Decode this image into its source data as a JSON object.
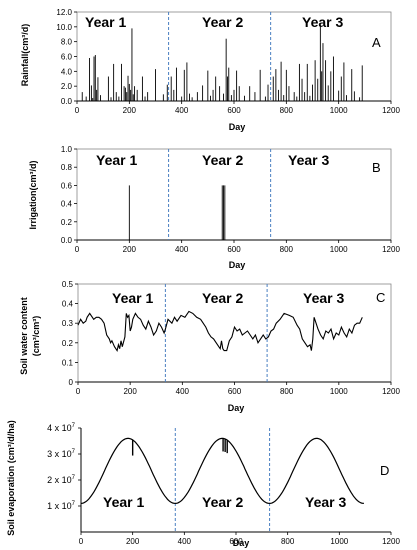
{
  "chart_data": [
    {
      "panel_label": "A",
      "type": "bar",
      "ylabel": "Rainfall(cm³/d)",
      "xlabel": "Day",
      "xlim": [
        0,
        1200
      ],
      "ylim": [
        0,
        12
      ],
      "x_ticks": [
        "0",
        "200",
        "400",
        "600",
        "800",
        "1000",
        "1200"
      ],
      "y_ticks": [
        "0.0",
        "2.0",
        "4.0",
        "6.0",
        "8.0",
        "10.0",
        "12.0"
      ],
      "year_labels": [
        "Year 1",
        "Year 2",
        "Year 3"
      ],
      "year_dividers": [
        350,
        740
      ],
      "series": [
        {
          "x": [
            20,
            35,
            48,
            55,
            60,
            65,
            70,
            75,
            80,
            90,
            120,
            130,
            140,
            150,
            160,
            170,
            180,
            185,
            190,
            195,
            200,
            205,
            210,
            215,
            220,
            230,
            250,
            260,
            270,
            300,
            330,
            345,
            360,
            370,
            380,
            400,
            410,
            420,
            430,
            440,
            460,
            480,
            500,
            510,
            520,
            530,
            545,
            560,
            570,
            575,
            580,
            590,
            600,
            610,
            620,
            640,
            660,
            680,
            700,
            720,
            730,
            750,
            760,
            770,
            780,
            790,
            800,
            810,
            830,
            840,
            850,
            860,
            870,
            880,
            890,
            900,
            910,
            920,
            930,
            935,
            940,
            950,
            960,
            970,
            980,
            1000,
            1010,
            1020,
            1030,
            1050,
            1060,
            1080,
            1090
          ],
          "values": [
            1.2,
            0.6,
            5.8,
            2.1,
            0.4,
            6.0,
            6.2,
            1.5,
            3.2,
            0.8,
            3.3,
            0.5,
            5.0,
            1.2,
            0.6,
            5.0,
            2.0,
            1.8,
            1.2,
            3.4,
            2.3,
            1.5,
            9.8,
            0.9,
            2.0,
            1.5,
            3.3,
            0.6,
            1.2,
            4.3,
            0.9,
            2.2,
            3.3,
            1.5,
            4.5,
            0.6,
            4.2,
            5.2,
            1.0,
            0.5,
            1.2,
            2.1,
            4.1,
            0.7,
            1.5,
            3.3,
            2.0,
            1.0,
            8.4,
            3.3,
            4.5,
            0.8,
            1.5,
            4.1,
            2.0,
            0.7,
            2.0,
            1.2,
            4.2,
            0.6,
            2.2,
            3.3,
            4.3,
            1.5,
            5.3,
            0.8,
            4.2,
            2.0,
            1.2,
            0.6,
            5.0,
            3.0,
            1.2,
            5.0,
            0.7,
            2.2,
            5.5,
            3.0,
            10.2,
            4.0,
            7.8,
            5.5,
            2.1,
            4.0,
            6.0,
            1.4,
            3.3,
            5.2,
            0.8,
            4.3,
            1.3,
            0.5,
            4.8
          ]
        }
      ]
    },
    {
      "panel_label": "B",
      "type": "bar",
      "ylabel": "Irrigation(cm³/d)",
      "xlabel": "Day",
      "xlim": [
        0,
        1200
      ],
      "ylim": [
        0,
        1
      ],
      "x_ticks": [
        "0",
        "200",
        "400",
        "600",
        "800",
        "1000",
        "1200"
      ],
      "y_ticks": [
        "0.0",
        "0.2",
        "0.4",
        "0.6",
        "0.8",
        "1.0"
      ],
      "year_labels": [
        "Year 1",
        "Year 2",
        "Year 3"
      ],
      "year_dividers": [
        350,
        740
      ],
      "series": [
        {
          "x": [
            200,
            555,
            560,
            565
          ],
          "values": [
            0.6,
            0.6,
            0.6,
            0.6
          ]
        }
      ]
    },
    {
      "panel_label": "C",
      "type": "line",
      "ylabel": "Soil water content",
      "ylabel2": "(cm³/cm³)",
      "xlabel": "Day",
      "xlim": [
        0,
        1200
      ],
      "ylim": [
        0,
        0.5
      ],
      "x_ticks": [
        "0",
        "200",
        "400",
        "600",
        "800",
        "1000",
        "1200"
      ],
      "y_ticks": [
        "0",
        "0.1",
        "0.2",
        "0.3",
        "0.4",
        "0.5"
      ],
      "year_labels": [
        "Year 1",
        "Year 2",
        "Year 3"
      ],
      "year_dividers": [
        335,
        725
      ],
      "series": [
        {
          "x": [
            0,
            10,
            20,
            30,
            35,
            45,
            60,
            70,
            80,
            90,
            100,
            110,
            120,
            125,
            130,
            140,
            150,
            155,
            160,
            165,
            170,
            180,
            185,
            190,
            195,
            200,
            205,
            210,
            220,
            230,
            240,
            250,
            260,
            270,
            280,
            290,
            300,
            310,
            320,
            330,
            335,
            345,
            360,
            370,
            380,
            395,
            410,
            425,
            440,
            455,
            470,
            480,
            490,
            500,
            510,
            520,
            530,
            540,
            545,
            550,
            555,
            560,
            570,
            580,
            590,
            600,
            610,
            620,
            630,
            640,
            650,
            660,
            670,
            680,
            690,
            700,
            710,
            720,
            730,
            740,
            750,
            760,
            775,
            790,
            810,
            825,
            840,
            850,
            860,
            870,
            880,
            890,
            895,
            900,
            905,
            910,
            920,
            930,
            940,
            950,
            960,
            970,
            980,
            990,
            1000,
            1010,
            1020,
            1030,
            1040,
            1050,
            1060,
            1070,
            1080,
            1090
          ],
          "values": [
            0.29,
            0.32,
            0.3,
            0.31,
            0.33,
            0.35,
            0.32,
            0.33,
            0.33,
            0.32,
            0.3,
            0.24,
            0.22,
            0.2,
            0.21,
            0.18,
            0.16,
            0.19,
            0.17,
            0.21,
            0.18,
            0.23,
            0.35,
            0.33,
            0.34,
            0.26,
            0.28,
            0.32,
            0.35,
            0.33,
            0.32,
            0.29,
            0.27,
            0.31,
            0.28,
            0.24,
            0.26,
            0.3,
            0.28,
            0.25,
            0.27,
            0.32,
            0.3,
            0.33,
            0.31,
            0.34,
            0.33,
            0.36,
            0.35,
            0.33,
            0.32,
            0.3,
            0.28,
            0.25,
            0.23,
            0.22,
            0.2,
            0.18,
            0.17,
            0.21,
            0.17,
            0.16,
            0.16,
            0.21,
            0.23,
            0.28,
            0.26,
            0.27,
            0.24,
            0.25,
            0.26,
            0.24,
            0.22,
            0.24,
            0.2,
            0.22,
            0.24,
            0.22,
            0.23,
            0.26,
            0.27,
            0.3,
            0.32,
            0.35,
            0.34,
            0.33,
            0.29,
            0.27,
            0.22,
            0.2,
            0.18,
            0.19,
            0.16,
            0.22,
            0.33,
            0.31,
            0.27,
            0.24,
            0.22,
            0.26,
            0.25,
            0.27,
            0.22,
            0.25,
            0.24,
            0.28,
            0.25,
            0.23,
            0.27,
            0.25,
            0.29,
            0.3,
            0.3,
            0.33
          ]
        }
      ]
    },
    {
      "panel_label": "D",
      "type": "line",
      "ylabel": "Soil evaporation (cm³/d/ha)",
      "xlabel": "Day",
      "xlim": [
        0,
        1200
      ],
      "ylim_x1e7": [
        0,
        4
      ],
      "x_ticks": [
        "0",
        "200",
        "400",
        "600",
        "800",
        "1000",
        "1200"
      ],
      "y_tick_values_x1e7": [
        1,
        2,
        3,
        4
      ],
      "y_tick_mantissa": "x 10",
      "y_tick_exponent": "7",
      "year_labels": [
        "Year 1",
        "Year 2",
        "Year 3"
      ],
      "year_dividers": [
        365,
        730
      ],
      "curve": {
        "min_x1e7": 1.1,
        "max_x1e7": 3.6,
        "period_days": 365,
        "first_peak_day": 182,
        "end_day": 1095
      },
      "dips": [
        {
          "x": 200,
          "depth_x1e7": 0.6
        },
        {
          "x": 550,
          "depth_x1e7": 0.5
        },
        {
          "x": 558,
          "depth_x1e7": 0.5
        },
        {
          "x": 566,
          "depth_x1e7": 0.5
        }
      ]
    }
  ]
}
